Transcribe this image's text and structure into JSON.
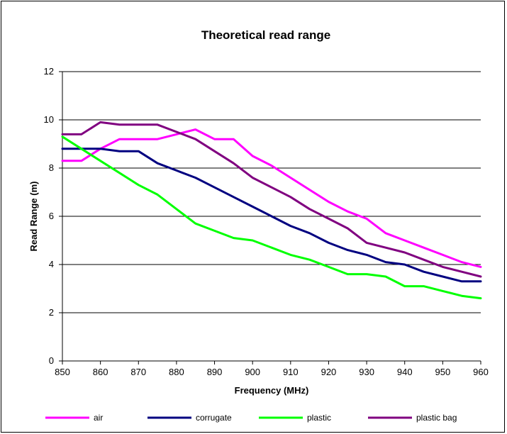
{
  "chart_data": {
    "type": "line",
    "title": "Theoretical read range",
    "xlabel": "Frequency (MHz)",
    "ylabel": "Read Range (m)",
    "x": [
      850,
      855,
      860,
      865,
      870,
      875,
      880,
      885,
      890,
      895,
      900,
      905,
      910,
      915,
      920,
      925,
      930,
      935,
      940,
      945,
      950,
      955,
      960
    ],
    "xlim": [
      850,
      960
    ],
    "ylim": [
      0,
      12
    ],
    "xticks": [
      "850",
      "860",
      "870",
      "880",
      "890",
      "900",
      "910",
      "920",
      "930",
      "940",
      "950",
      "960"
    ],
    "yticks": [
      "0",
      "2",
      "4",
      "6",
      "8",
      "10",
      "12"
    ],
    "grid": "horizontal",
    "legend_position": "bottom",
    "series": [
      {
        "name": "air",
        "color": "#FF00FF",
        "values": [
          8.3,
          8.3,
          8.8,
          9.2,
          9.2,
          9.2,
          9.4,
          9.6,
          9.2,
          9.2,
          8.5,
          8.1,
          7.6,
          7.1,
          6.6,
          6.2,
          5.9,
          5.3,
          5.0,
          4.7,
          4.4,
          4.1,
          3.9
        ]
      },
      {
        "name": "corrugate",
        "color": "#000080",
        "values": [
          8.8,
          8.8,
          8.8,
          8.7,
          8.7,
          8.2,
          7.9,
          7.6,
          7.2,
          6.8,
          6.4,
          6.0,
          5.6,
          5.3,
          4.9,
          4.6,
          4.4,
          4.1,
          4.0,
          3.7,
          3.5,
          3.3,
          3.3
        ]
      },
      {
        "name": "plastic",
        "color": "#00FF00",
        "values": [
          9.3,
          8.8,
          8.3,
          7.8,
          7.3,
          6.9,
          6.3,
          5.7,
          5.4,
          5.1,
          5.0,
          4.7,
          4.4,
          4.2,
          3.9,
          3.6,
          3.6,
          3.5,
          3.1,
          3.1,
          2.9,
          2.7,
          2.6
        ]
      },
      {
        "name": "plastic bag",
        "color": "#800080",
        "values": [
          9.4,
          9.4,
          9.9,
          9.8,
          9.8,
          9.8,
          9.5,
          9.2,
          8.7,
          8.2,
          7.6,
          7.2,
          6.8,
          6.3,
          5.9,
          5.5,
          4.9,
          4.7,
          4.5,
          4.2,
          3.9,
          3.7,
          3.5
        ]
      }
    ]
  }
}
